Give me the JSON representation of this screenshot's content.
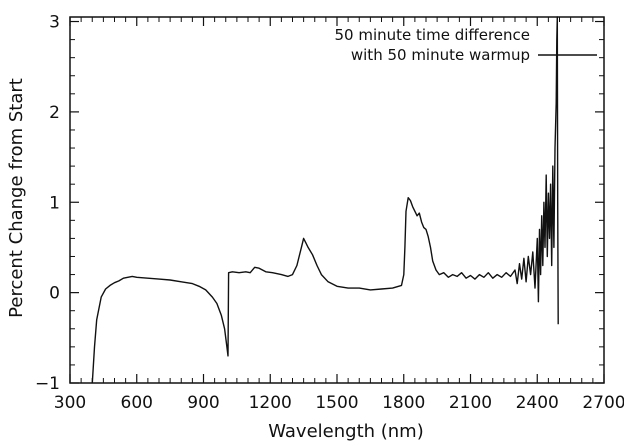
{
  "chart_data": {
    "type": "line",
    "xlabel": "Wavelength (nm)",
    "ylabel": "Percent Change from Start",
    "xlim": [
      300,
      2700
    ],
    "ylim": [
      -1,
      3.05
    ],
    "xticks": [
      300,
      600,
      900,
      1200,
      1500,
      1800,
      2100,
      2400,
      2700
    ],
    "yticks": [
      -1,
      0,
      1,
      2,
      3
    ],
    "grid": false,
    "legend_position": "top-right",
    "series": [
      {
        "name": "50 minute time difference\nwith 50 minute warmup",
        "color": "#111111",
        "points": [
          [
            400,
            -1.0
          ],
          [
            410,
            -0.6
          ],
          [
            420,
            -0.3
          ],
          [
            440,
            -0.05
          ],
          [
            460,
            0.04
          ],
          [
            480,
            0.08
          ],
          [
            500,
            0.11
          ],
          [
            520,
            0.13
          ],
          [
            540,
            0.16
          ],
          [
            560,
            0.17
          ],
          [
            580,
            0.18
          ],
          [
            600,
            0.17
          ],
          [
            650,
            0.16
          ],
          [
            700,
            0.15
          ],
          [
            750,
            0.14
          ],
          [
            800,
            0.12
          ],
          [
            850,
            0.1
          ],
          [
            880,
            0.07
          ],
          [
            910,
            0.03
          ],
          [
            940,
            -0.05
          ],
          [
            960,
            -0.12
          ],
          [
            980,
            -0.25
          ],
          [
            995,
            -0.4
          ],
          [
            1005,
            -0.6
          ],
          [
            1010,
            -0.7
          ],
          [
            1013,
            0.22
          ],
          [
            1030,
            0.23
          ],
          [
            1060,
            0.22
          ],
          [
            1090,
            0.23
          ],
          [
            1110,
            0.22
          ],
          [
            1130,
            0.28
          ],
          [
            1150,
            0.27
          ],
          [
            1180,
            0.23
          ],
          [
            1210,
            0.22
          ],
          [
            1250,
            0.2
          ],
          [
            1280,
            0.18
          ],
          [
            1300,
            0.2
          ],
          [
            1320,
            0.3
          ],
          [
            1340,
            0.5
          ],
          [
            1350,
            0.6
          ],
          [
            1360,
            0.55
          ],
          [
            1370,
            0.5
          ],
          [
            1390,
            0.42
          ],
          [
            1410,
            0.3
          ],
          [
            1430,
            0.2
          ],
          [
            1460,
            0.12
          ],
          [
            1500,
            0.07
          ],
          [
            1550,
            0.05
          ],
          [
            1600,
            0.05
          ],
          [
            1650,
            0.03
          ],
          [
            1700,
            0.04
          ],
          [
            1750,
            0.05
          ],
          [
            1790,
            0.08
          ],
          [
            1800,
            0.2
          ],
          [
            1805,
            0.5
          ],
          [
            1810,
            0.9
          ],
          [
            1820,
            1.05
          ],
          [
            1830,
            1.02
          ],
          [
            1840,
            0.95
          ],
          [
            1850,
            0.9
          ],
          [
            1860,
            0.85
          ],
          [
            1870,
            0.88
          ],
          [
            1880,
            0.78
          ],
          [
            1890,
            0.72
          ],
          [
            1900,
            0.7
          ],
          [
            1910,
            0.62
          ],
          [
            1920,
            0.5
          ],
          [
            1930,
            0.35
          ],
          [
            1945,
            0.25
          ],
          [
            1960,
            0.2
          ],
          [
            1980,
            0.22
          ],
          [
            2000,
            0.17
          ],
          [
            2020,
            0.2
          ],
          [
            2040,
            0.18
          ],
          [
            2060,
            0.22
          ],
          [
            2080,
            0.16
          ],
          [
            2100,
            0.19
          ],
          [
            2120,
            0.15
          ],
          [
            2140,
            0.2
          ],
          [
            2160,
            0.17
          ],
          [
            2180,
            0.22
          ],
          [
            2200,
            0.16
          ],
          [
            2220,
            0.2
          ],
          [
            2240,
            0.17
          ],
          [
            2260,
            0.22
          ],
          [
            2280,
            0.18
          ],
          [
            2300,
            0.25
          ],
          [
            2310,
            0.1
          ],
          [
            2320,
            0.32
          ],
          [
            2330,
            0.15
          ],
          [
            2340,
            0.38
          ],
          [
            2350,
            0.12
          ],
          [
            2360,
            0.4
          ],
          [
            2370,
            0.2
          ],
          [
            2380,
            0.45
          ],
          [
            2390,
            0.05
          ],
          [
            2400,
            0.6
          ],
          [
            2405,
            -0.1
          ],
          [
            2410,
            0.7
          ],
          [
            2415,
            0.2
          ],
          [
            2420,
            0.85
          ],
          [
            2425,
            0.3
          ],
          [
            2430,
            1.0
          ],
          [
            2435,
            0.5
          ],
          [
            2440,
            1.3
          ],
          [
            2445,
            0.4
          ],
          [
            2450,
            1.1
          ],
          [
            2455,
            0.6
          ],
          [
            2460,
            1.2
          ],
          [
            2465,
            0.3
          ],
          [
            2470,
            1.4
          ],
          [
            2475,
            0.5
          ],
          [
            2480,
            1.6
          ],
          [
            2485,
            2.1
          ],
          [
            2488,
            2.8
          ],
          [
            2490,
            3.05
          ],
          [
            2492,
            1.0
          ],
          [
            2494,
            -0.35
          ]
        ]
      }
    ]
  }
}
